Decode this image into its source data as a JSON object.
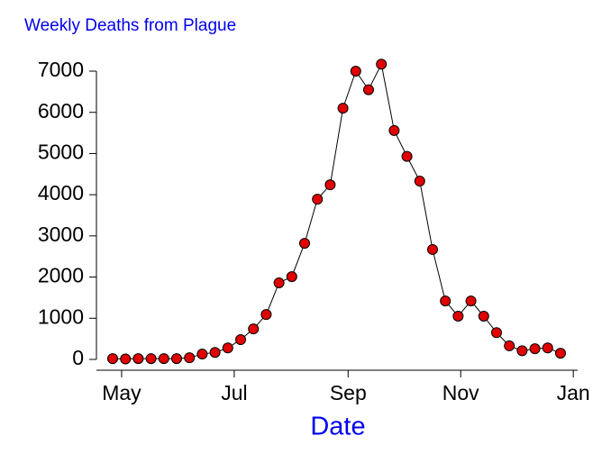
{
  "chart_data": {
    "type": "line",
    "title": "Weekly Deaths from Plague",
    "x_label": "Date",
    "categories": [
      null,
      null,
      null,
      null,
      null,
      null,
      null,
      null,
      null,
      null,
      null,
      null,
      null,
      null,
      null,
      null,
      null,
      null,
      null,
      null,
      null,
      null,
      null,
      null,
      null,
      null,
      null,
      null,
      null,
      null,
      null,
      null,
      null,
      null,
      null,
      null
    ],
    "values": [
      20,
      10,
      20,
      20,
      20,
      20,
      40,
      130,
      170,
      280,
      480,
      740,
      1090,
      1860,
      2010,
      2820,
      3890,
      4240,
      6100,
      7000,
      6550,
      7170,
      5560,
      4930,
      4330,
      2670,
      1420,
      1050,
      1420,
      1050,
      650,
      330,
      210,
      260,
      280,
      150
    ],
    "color": "#e00000",
    "line_color": "#000000",
    "xlim": [
      -1.27,
      36.34
    ],
    "xticks": [
      {
        "value": 0.7,
        "label": "May"
      },
      {
        "value": 9.5,
        "label": "Jul"
      },
      {
        "value": 18.4,
        "label": "Sep"
      },
      {
        "value": 27.2,
        "label": "Nov"
      },
      {
        "value": 36.0,
        "label": "Jan"
      }
    ],
    "ylim": [
      0,
      7000
    ],
    "yticks": [
      0,
      1000,
      2000,
      3000,
      4000,
      5000,
      6000,
      7000
    ]
  }
}
